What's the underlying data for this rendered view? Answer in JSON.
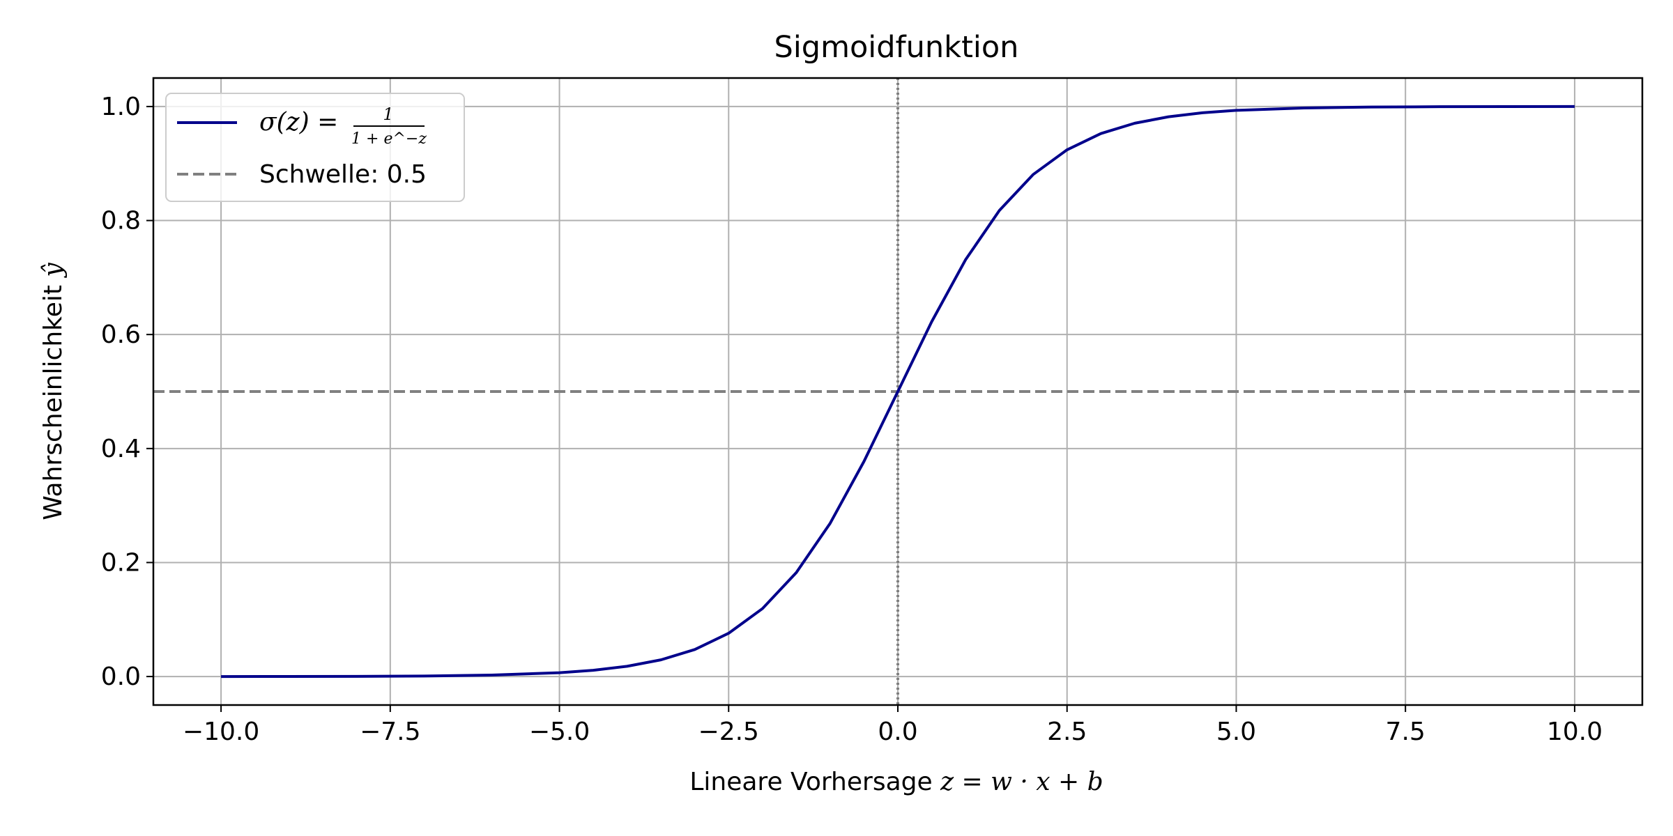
{
  "chart_data": {
    "type": "line",
    "title": "Sigmoidfunktion",
    "xlabel_text": "Lineare Vorhersage ",
    "xlabel_math": "z = w · x + b",
    "ylabel_text": "Wahrscheinlichkeit ",
    "ylabel_math": "ŷ",
    "xlim": [
      -11,
      11
    ],
    "ylim": [
      -0.05,
      1.05
    ],
    "x_ticks": [
      -10,
      -7.5,
      -5,
      -2.5,
      0,
      2.5,
      5,
      7.5,
      10
    ],
    "x_tick_labels": [
      "−10.0",
      "−7.5",
      "−5.0",
      "−2.5",
      "0.0",
      "2.5",
      "5.0",
      "7.5",
      "10.0"
    ],
    "y_ticks": [
      0,
      0.2,
      0.4,
      0.6,
      0.8,
      1.0
    ],
    "y_tick_labels": [
      "0.0",
      "0.2",
      "0.4",
      "0.6",
      "0.8",
      "1.0"
    ],
    "grid": true,
    "legend_position": "top-left",
    "series": [
      {
        "name": "σ(z) = 1 / (1 + e^−z)",
        "legend_prefix": "σ(z) =",
        "legend_numerator": "1",
        "legend_denominator": "1 + e^−z",
        "style": "solid",
        "color": "#00008b",
        "x": [
          -10,
          -9,
          -8,
          -7,
          -6,
          -5,
          -4.5,
          -4,
          -3.5,
          -3,
          -2.5,
          -2,
          -1.5,
          -1,
          -0.5,
          0,
          0.5,
          1,
          1.5,
          2,
          2.5,
          3,
          3.5,
          4,
          4.5,
          5,
          6,
          7,
          8,
          9,
          10
        ],
        "y": [
          0.0,
          0.0001,
          0.0003,
          0.0009,
          0.0025,
          0.0067,
          0.011,
          0.018,
          0.0293,
          0.0474,
          0.0759,
          0.1192,
          0.1824,
          0.2689,
          0.3775,
          0.5,
          0.6225,
          0.7311,
          0.8176,
          0.8808,
          0.9241,
          0.9526,
          0.9707,
          0.982,
          0.989,
          0.9933,
          0.9975,
          0.9991,
          0.9997,
          0.9999,
          1.0
        ]
      },
      {
        "name": "Schwelle: 0.5",
        "style": "dashed",
        "color": "#808080",
        "y_constant": 0.5
      }
    ],
    "vertical_reference": {
      "x": 0,
      "style": "dotted",
      "color": "#808080"
    },
    "grid_color": "#b0b0b0"
  }
}
